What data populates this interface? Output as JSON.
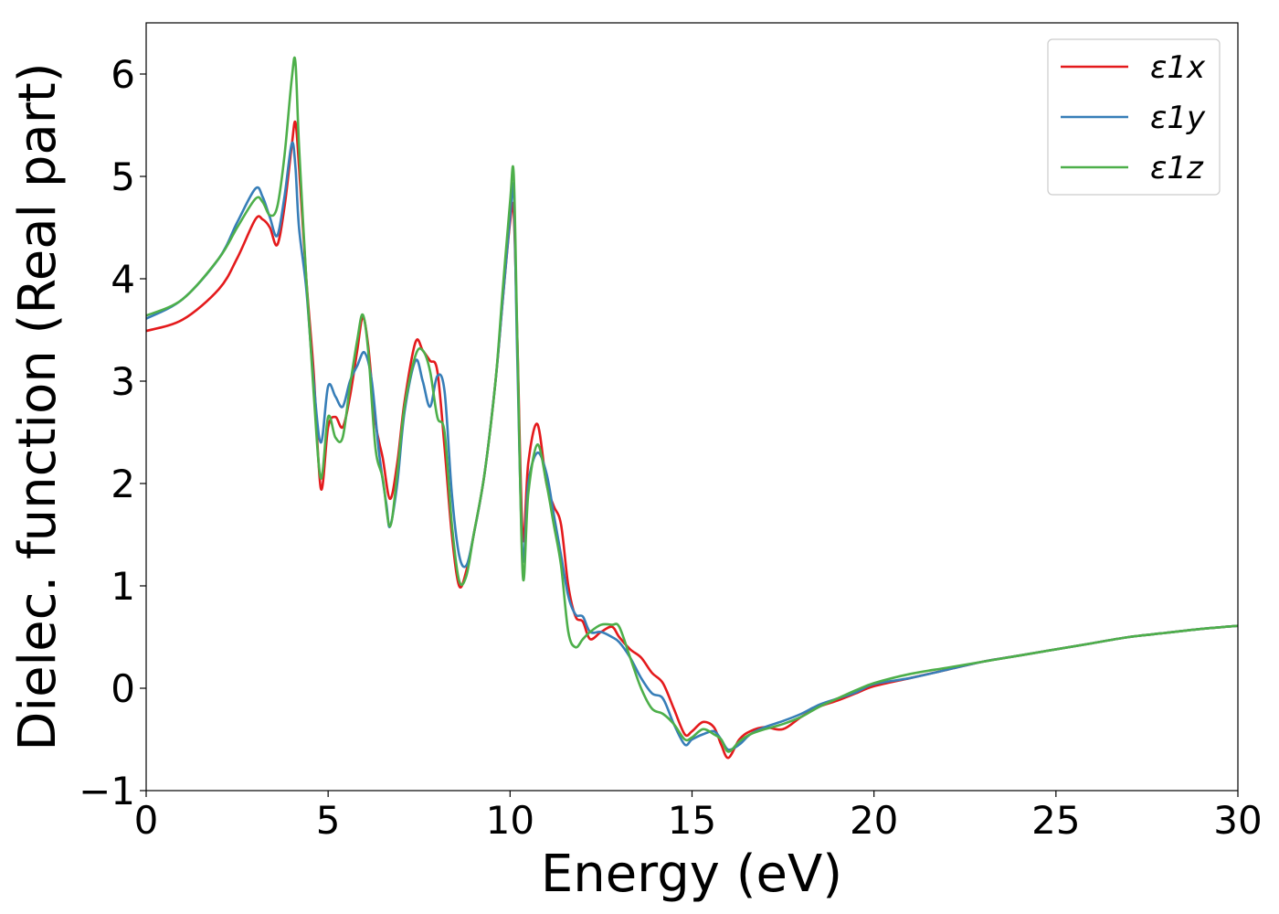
{
  "chart_data": {
    "type": "line",
    "xlabel": "Energy (eV)",
    "ylabel": "Dielec. function (Real part)",
    "xlim": [
      0,
      30
    ],
    "ylim": [
      -1.0,
      6.5
    ],
    "xticks": [
      0,
      5,
      10,
      15,
      20,
      25,
      30
    ],
    "yticks": [
      -1,
      0,
      1,
      2,
      3,
      4,
      5,
      6
    ],
    "xtick_labels": [
      "0",
      "5",
      "10",
      "15",
      "20",
      "25",
      "30"
    ],
    "ytick_labels": [
      "−1",
      "0",
      "1",
      "2",
      "3",
      "4",
      "5",
      "6"
    ],
    "grid": false,
    "legend_position": "top-right",
    "series": [
      {
        "name": "ε1x",
        "color": "#e41a1c",
        "x": [
          0,
          1.0,
          2.0,
          2.5,
          3.0,
          3.2,
          3.4,
          3.6,
          3.8,
          4.0,
          4.1,
          4.2,
          4.4,
          4.6,
          4.8,
          5.0,
          5.2,
          5.4,
          5.6,
          5.8,
          5.95,
          6.1,
          6.3,
          6.5,
          6.7,
          6.9,
          7.1,
          7.4,
          7.6,
          7.8,
          8.0,
          8.2,
          8.4,
          8.6,
          8.8,
          9.0,
          9.3,
          9.6,
          9.8,
          10.0,
          10.1,
          10.2,
          10.35,
          10.5,
          10.75,
          11.0,
          11.2,
          11.4,
          11.6,
          11.8,
          12.0,
          12.2,
          12.5,
          12.8,
          13.0,
          13.3,
          13.6,
          13.9,
          14.2,
          14.5,
          14.8,
          15.0,
          15.3,
          15.6,
          15.8,
          16.0,
          16.3,
          16.6,
          17.0,
          17.5,
          18.0,
          18.5,
          19.0,
          19.5,
          20.0,
          21.0,
          22.0,
          23.0,
          24.0,
          25.0,
          26.0,
          27.0,
          28.0,
          29.0,
          30.0
        ],
        "y": [
          3.49,
          3.6,
          3.9,
          4.2,
          4.58,
          4.58,
          4.5,
          4.33,
          4.7,
          5.3,
          5.53,
          5.1,
          4.0,
          3.1,
          1.95,
          2.55,
          2.65,
          2.55,
          2.85,
          3.3,
          3.62,
          3.35,
          2.6,
          2.25,
          1.85,
          2.2,
          2.8,
          3.38,
          3.3,
          3.2,
          3.1,
          2.35,
          1.5,
          1.0,
          1.15,
          1.5,
          2.1,
          3.0,
          3.8,
          4.55,
          4.65,
          3.4,
          1.47,
          2.2,
          2.58,
          2.0,
          1.78,
          1.6,
          1.0,
          0.7,
          0.65,
          0.48,
          0.55,
          0.6,
          0.5,
          0.38,
          0.3,
          0.15,
          0.05,
          -0.2,
          -0.45,
          -0.42,
          -0.33,
          -0.38,
          -0.55,
          -0.68,
          -0.5,
          -0.42,
          -0.38,
          -0.4,
          -0.28,
          -0.18,
          -0.12,
          -0.05,
          0.02,
          0.1,
          0.18,
          0.26,
          0.32,
          0.38,
          0.44,
          0.5,
          0.54,
          0.58,
          0.61
        ]
      },
      {
        "name": "ε1y",
        "color": "#377eb8",
        "x": [
          0,
          1.0,
          2.0,
          2.5,
          3.0,
          3.2,
          3.4,
          3.6,
          3.8,
          4.0,
          4.1,
          4.2,
          4.4,
          4.6,
          4.8,
          5.0,
          5.2,
          5.4,
          5.6,
          5.8,
          6.0,
          6.2,
          6.4,
          6.6,
          6.7,
          6.9,
          7.1,
          7.4,
          7.6,
          7.8,
          8.0,
          8.2,
          8.4,
          8.6,
          8.8,
          9.0,
          9.3,
          9.6,
          9.8,
          10.0,
          10.1,
          10.2,
          10.35,
          10.5,
          10.75,
          11.0,
          11.2,
          11.4,
          11.6,
          11.8,
          12.0,
          12.2,
          12.5,
          12.8,
          13.0,
          13.3,
          13.6,
          13.9,
          14.2,
          14.5,
          14.8,
          15.0,
          15.3,
          15.6,
          15.8,
          16.0,
          16.3,
          16.6,
          17.0,
          17.5,
          18.0,
          18.5,
          19.0,
          19.5,
          20.0,
          21.0,
          22.0,
          23.0,
          24.0,
          25.0,
          26.0,
          27.0,
          28.0,
          29.0,
          30.0
        ],
        "y": [
          3.61,
          3.8,
          4.2,
          4.55,
          4.88,
          4.8,
          4.6,
          4.42,
          4.8,
          5.32,
          5.1,
          4.5,
          3.9,
          3.0,
          2.4,
          2.95,
          2.85,
          2.75,
          3.0,
          3.15,
          3.28,
          3.0,
          2.3,
          1.8,
          1.58,
          2.0,
          2.7,
          3.2,
          3.0,
          2.75,
          3.05,
          2.9,
          1.9,
          1.3,
          1.2,
          1.5,
          2.1,
          3.0,
          3.8,
          4.6,
          4.85,
          3.2,
          1.27,
          2.0,
          2.3,
          2.1,
          1.7,
          1.3,
          0.9,
          0.72,
          0.7,
          0.55,
          0.55,
          0.5,
          0.45,
          0.3,
          0.1,
          -0.05,
          -0.1,
          -0.35,
          -0.55,
          -0.5,
          -0.45,
          -0.42,
          -0.5,
          -0.6,
          -0.55,
          -0.45,
          -0.38,
          -0.32,
          -0.25,
          -0.16,
          -0.1,
          -0.04,
          0.04,
          0.1,
          0.18,
          0.26,
          0.32,
          0.38,
          0.44,
          0.5,
          0.54,
          0.58,
          0.61
        ]
      },
      {
        "name": "ε1z",
        "color": "#4daf4a",
        "x": [
          0,
          1.0,
          2.0,
          2.5,
          3.0,
          3.2,
          3.4,
          3.6,
          3.8,
          4.0,
          4.1,
          4.2,
          4.4,
          4.6,
          4.8,
          5.0,
          5.2,
          5.4,
          5.6,
          5.8,
          5.95,
          6.1,
          6.3,
          6.5,
          6.7,
          6.9,
          7.1,
          7.4,
          7.6,
          7.8,
          8.0,
          8.2,
          8.4,
          8.6,
          8.8,
          9.0,
          9.3,
          9.6,
          9.8,
          10.0,
          10.1,
          10.2,
          10.35,
          10.5,
          10.75,
          11.0,
          11.2,
          11.4,
          11.6,
          11.8,
          12.0,
          12.2,
          12.5,
          12.8,
          13.0,
          13.3,
          13.6,
          13.9,
          14.2,
          14.5,
          14.8,
          15.0,
          15.3,
          15.6,
          15.8,
          16.0,
          16.3,
          16.6,
          17.0,
          17.5,
          18.0,
          18.5,
          19.0,
          19.5,
          20.0,
          21.0,
          22.0,
          23.0,
          24.0,
          25.0,
          26.0,
          27.0,
          28.0,
          29.0,
          30.0
        ],
        "y": [
          3.64,
          3.8,
          4.2,
          4.5,
          4.78,
          4.75,
          4.62,
          4.7,
          5.2,
          5.95,
          6.12,
          5.3,
          4.0,
          2.9,
          2.05,
          2.65,
          2.45,
          2.45,
          2.95,
          3.4,
          3.65,
          3.3,
          2.35,
          2.05,
          1.58,
          2.1,
          2.75,
          3.25,
          3.3,
          3.1,
          2.65,
          2.5,
          1.6,
          1.05,
          1.1,
          1.5,
          2.1,
          3.0,
          3.9,
          4.75,
          5.02,
          3.4,
          1.1,
          1.9,
          2.38,
          2.0,
          1.6,
          1.2,
          0.55,
          0.4,
          0.48,
          0.55,
          0.62,
          0.62,
          0.6,
          0.3,
          0.0,
          -0.2,
          -0.25,
          -0.35,
          -0.5,
          -0.48,
          -0.4,
          -0.45,
          -0.5,
          -0.62,
          -0.52,
          -0.45,
          -0.4,
          -0.35,
          -0.28,
          -0.18,
          -0.1,
          -0.02,
          0.05,
          0.14,
          0.2,
          0.26,
          0.32,
          0.38,
          0.44,
          0.5,
          0.54,
          0.58,
          0.61
        ]
      }
    ]
  }
}
